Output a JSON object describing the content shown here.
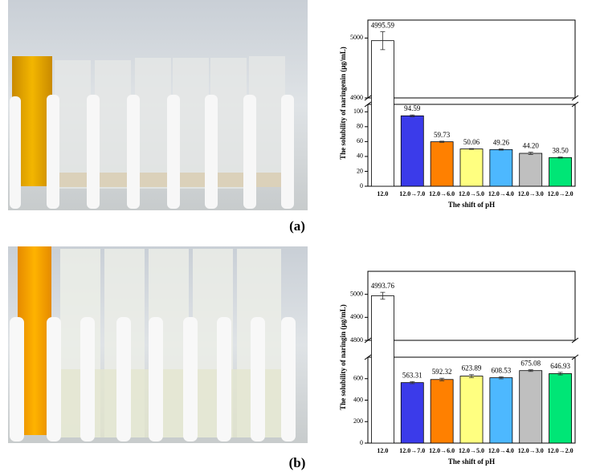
{
  "chart_data": [
    {
      "type": "bar",
      "panel_label": "(a)",
      "y_label": "The solubility of naringenin (μg/mL)",
      "x_label": "The shift of pH",
      "categories": [
        "12.0",
        "12.0→7.0",
        "12.0→6.0",
        "12.0→5.0",
        "12.0→4.0",
        "12.0→3.0",
        "12.0→2.0"
      ],
      "values": [
        4995.59,
        94.59,
        59.73,
        50.06,
        49.26,
        44.2,
        38.5
      ],
      "value_labels": [
        "4995.59",
        "94.59",
        "59.73",
        "50.06",
        "49.26",
        "44.20",
        "38.50"
      ],
      "errors": [
        15,
        1.2,
        0.8,
        0.6,
        0.8,
        1.5,
        0.8
      ],
      "colors": [
        "#ffffff",
        "#3b3bea",
        "#ff8000",
        "#ffff80",
        "#4db8ff",
        "#bfbfbf",
        "#00e676"
      ],
      "ylim": [
        0,
        5030
      ],
      "ybreak": [
        110,
        4900
      ],
      "yticks": [
        0,
        20,
        40,
        60,
        80,
        100,
        4900,
        5000
      ]
    },
    {
      "type": "bar",
      "panel_label": "(b)",
      "y_label": "The solubility of naringin (μg/mL)",
      "x_label": "The shift of pH",
      "categories": [
        "12.0",
        "12.0→7.0",
        "12.0→6.0",
        "12.0→5.0",
        "12.0→4.0",
        "12.0→3.0",
        "12.0→2.0"
      ],
      "values": [
        4993.76,
        563.31,
        592.32,
        623.89,
        608.53,
        675.08,
        646.93
      ],
      "value_labels": [
        "4993.76",
        "563.31",
        "592.32",
        "623.89",
        "608.53",
        "675.08",
        "646.93"
      ],
      "errors": [
        15,
        10,
        12,
        14,
        10,
        8,
        12
      ],
      "colors": [
        "#ffffff",
        "#3b3bea",
        "#ff8000",
        "#ffff80",
        "#4db8ff",
        "#bfbfbf",
        "#00e676"
      ],
      "ylim": [
        0,
        5100
      ],
      "ybreak": [
        800,
        4800
      ],
      "yticks": [
        0,
        200,
        400,
        600,
        4800,
        4900,
        5000
      ]
    }
  ]
}
